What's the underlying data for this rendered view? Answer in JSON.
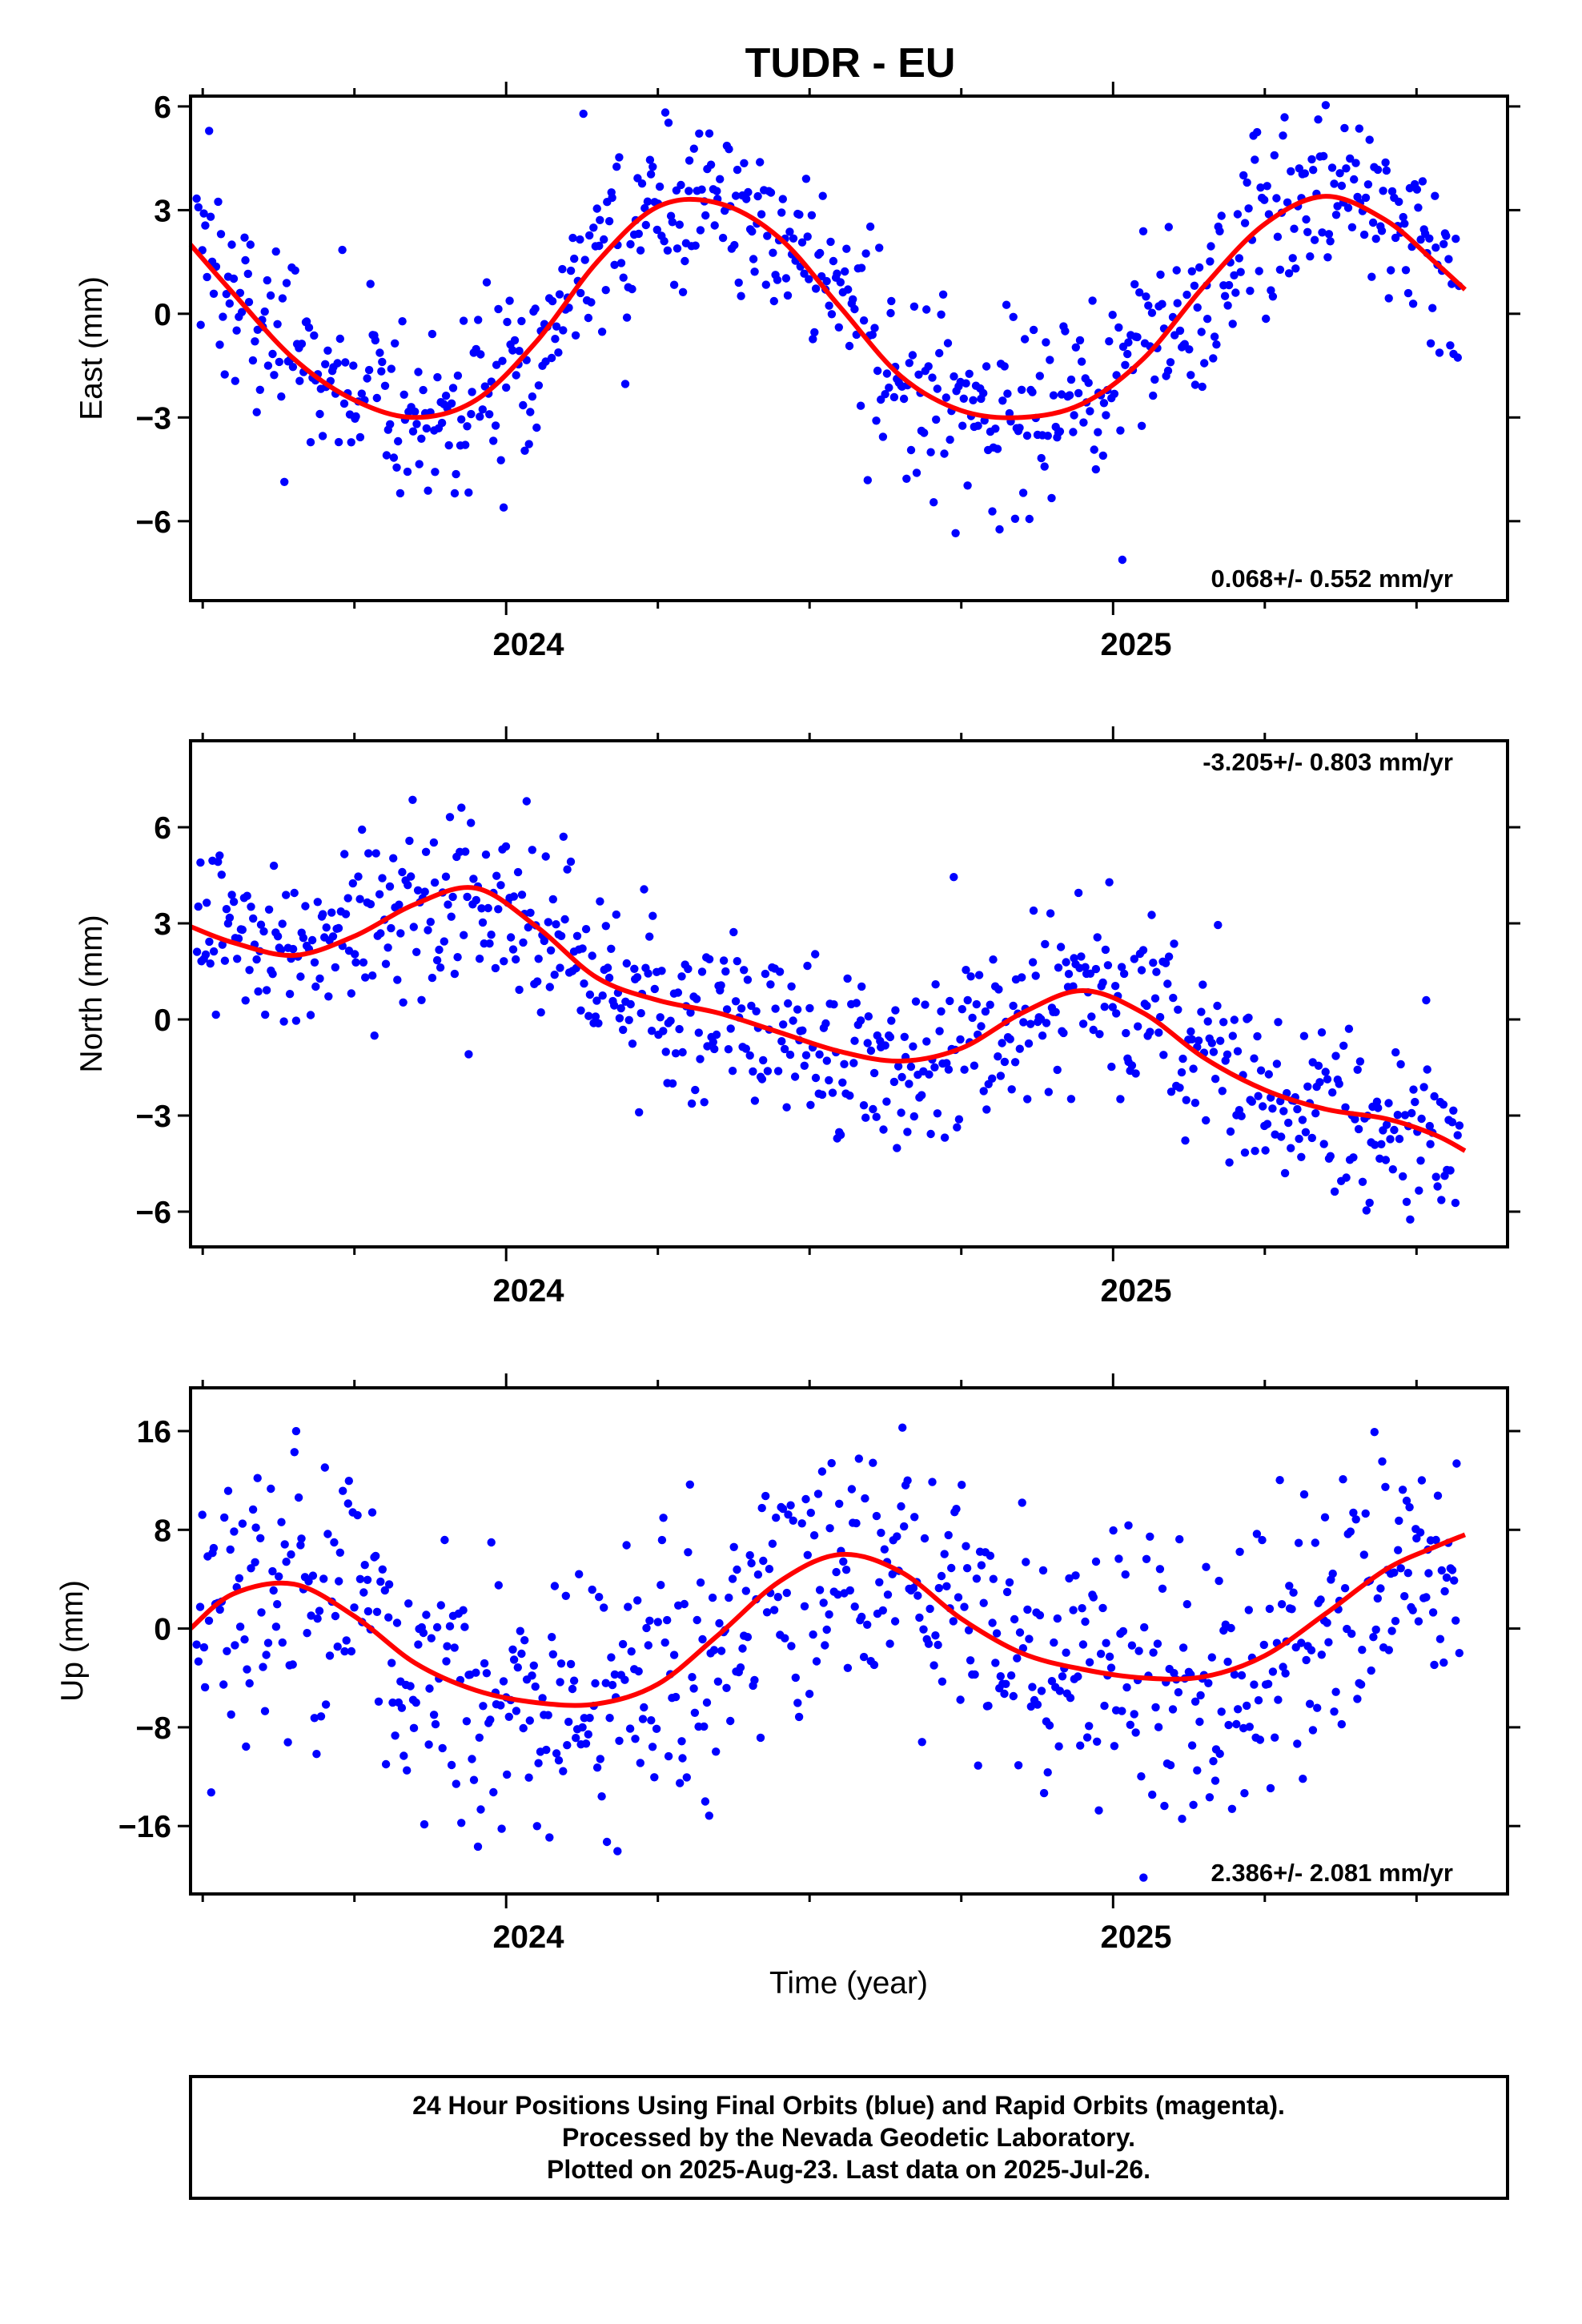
{
  "chart_data": {
    "type": "scatter",
    "title": "TUDR - EU",
    "xlabel": "Time (year)",
    "xlim": [
      2023.48,
      2025.65
    ],
    "x_ticks": [
      "2024",
      "2025"
    ],
    "marker_color": "#0000ff",
    "fit_color": "#ff0000",
    "grid": false,
    "panels": [
      {
        "name": "east",
        "ylabel": "East (mm)",
        "ylim": [
          -8.3,
          6.3
        ],
        "y_ticks": [
          6,
          3,
          0,
          -3,
          -6
        ],
        "y_tick_labels": [
          "6",
          "3",
          "0",
          "−3",
          "−6"
        ],
        "rate_label": "0.068+/- 0.552 mm/yr",
        "rate_position": "bottom-right",
        "fit": {
          "type": "line",
          "x": [
            2023.48,
            2023.55,
            2023.65,
            2023.75,
            2023.85,
            2023.95,
            2024.05,
            2024.15,
            2024.25,
            2024.35,
            2024.45,
            2024.55,
            2024.65,
            2024.75,
            2024.85,
            2024.95,
            2025.05,
            2025.15,
            2025.25,
            2025.35,
            2025.45,
            2025.53,
            2025.58
          ],
          "y": [
            2.0,
            0.6,
            -1.3,
            -2.5,
            -3.0,
            -2.5,
            -0.8,
            1.5,
            3.1,
            3.2,
            2.2,
            0.2,
            -1.8,
            -2.8,
            -3.0,
            -2.6,
            -1.3,
            0.8,
            2.6,
            3.4,
            2.7,
            1.5,
            0.7
          ]
        },
        "points": {
          "count": 720,
          "scatter_sd": 1.4
        }
      },
      {
        "name": "north",
        "ylabel": "North (mm)",
        "ylim": [
          -7.1,
          8.7
        ],
        "y_ticks": [
          6,
          3,
          0,
          -3,
          -6
        ],
        "y_tick_labels": [
          "6",
          "3",
          "0",
          "−3",
          "−6"
        ],
        "rate_label": "-3.205+/- 0.803 mm/yr",
        "rate_position": "top-right",
        "fit": {
          "type": "line",
          "x": [
            2023.48,
            2023.55,
            2023.65,
            2023.75,
            2023.85,
            2023.95,
            2024.05,
            2024.15,
            2024.25,
            2024.35,
            2024.45,
            2024.55,
            2024.65,
            2024.75,
            2024.85,
            2024.95,
            2025.05,
            2025.15,
            2025.25,
            2025.35,
            2025.45,
            2025.53,
            2025.58
          ],
          "y": [
            2.9,
            2.4,
            2.0,
            2.6,
            3.6,
            4.1,
            2.9,
            1.3,
            0.6,
            0.2,
            -0.4,
            -1.0,
            -1.3,
            -0.9,
            0.2,
            0.9,
            0.2,
            -1.2,
            -2.2,
            -2.8,
            -3.1,
            -3.6,
            -4.1
          ]
        },
        "points": {
          "count": 720,
          "scatter_sd": 1.45
        }
      },
      {
        "name": "up",
        "ylabel": "Up (mm)",
        "ylim": [
          -21.5,
          19.5
        ],
        "y_ticks": [
          16,
          8,
          0,
          -8,
          -16
        ],
        "y_tick_labels": [
          "16",
          "8",
          "0",
          "−8",
          "−16"
        ],
        "rate_label": "2.386+/- 2.081 mm/yr",
        "rate_position": "bottom-right",
        "fit": {
          "type": "line",
          "x": [
            2023.48,
            2023.55,
            2023.65,
            2023.75,
            2023.85,
            2023.95,
            2024.05,
            2024.15,
            2024.25,
            2024.35,
            2024.45,
            2024.55,
            2024.65,
            2024.75,
            2024.85,
            2024.95,
            2025.05,
            2025.15,
            2025.25,
            2025.35,
            2025.45,
            2025.53,
            2025.58
          ],
          "y": [
            0.0,
            2.8,
            3.6,
            1.0,
            -2.8,
            -5.0,
            -6.0,
            -6.1,
            -4.5,
            -0.5,
            3.8,
            6.0,
            4.6,
            0.8,
            -2.0,
            -3.3,
            -4.0,
            -3.9,
            -2.2,
            1.2,
            4.8,
            6.6,
            7.6
          ]
        },
        "points": {
          "count": 720,
          "scatter_sd": 5.4
        }
      }
    ],
    "footer_lines": [
      "24 Hour Positions Using Final Orbits (blue) and Rapid Orbits (magenta).",
      "Processed by the Nevada Geodetic Laboratory.",
      "Plotted on 2025-Aug-23. Last data on 2025-Jul-26."
    ]
  }
}
